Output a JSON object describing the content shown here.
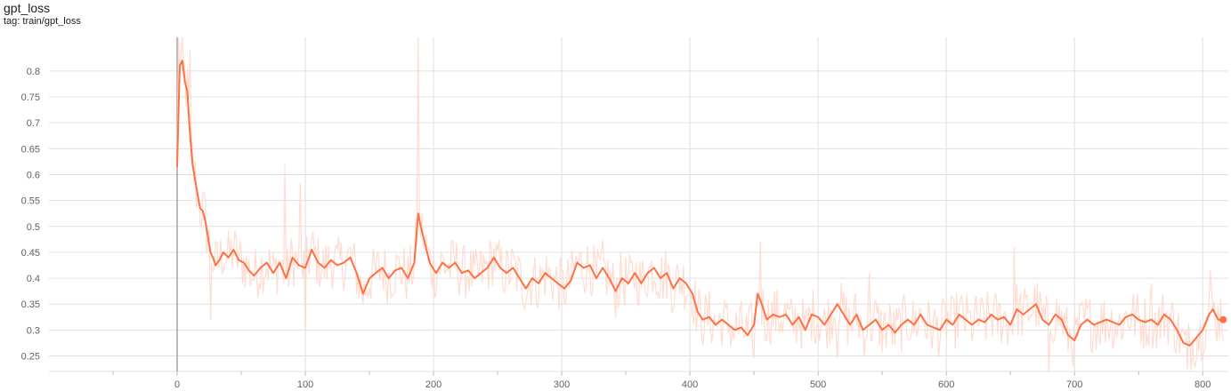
{
  "header": {
    "title": "gpt_loss",
    "tag": "tag: train/gpt_loss"
  },
  "colors": {
    "smoothed": "#ff7043",
    "raw": "#ffd6c9",
    "grid": "#e0e0e0",
    "zero_axis": "#9e9e9e"
  },
  "chart_data": {
    "type": "line",
    "title": "gpt_loss",
    "subtitle": "tag: train/gpt_loss",
    "xlabel": "",
    "ylabel": "",
    "xlim": [
      -100,
      820
    ],
    "ylim": [
      0.22,
      0.865
    ],
    "x_ticks": [
      0,
      100,
      200,
      300,
      400,
      500,
      600,
      700,
      800
    ],
    "y_ticks": [
      0.25,
      0.3,
      0.35,
      0.4,
      0.45,
      0.5,
      0.55,
      0.6,
      0.65,
      0.7,
      0.75,
      0.8
    ],
    "grid": true,
    "legend": "none",
    "series": [
      {
        "role": "smoothed",
        "points": [
          [
            0,
            0.615
          ],
          [
            2,
            0.81
          ],
          [
            4,
            0.82
          ],
          [
            6,
            0.78
          ],
          [
            8,
            0.76
          ],
          [
            10,
            0.68
          ],
          [
            12,
            0.62
          ],
          [
            14,
            0.59
          ],
          [
            16,
            0.56
          ],
          [
            18,
            0.535
          ],
          [
            20,
            0.53
          ],
          [
            22,
            0.51
          ],
          [
            24,
            0.48
          ],
          [
            26,
            0.45
          ],
          [
            28,
            0.44
          ],
          [
            30,
            0.425
          ],
          [
            33,
            0.435
          ],
          [
            36,
            0.45
          ],
          [
            40,
            0.44
          ],
          [
            44,
            0.455
          ],
          [
            48,
            0.435
          ],
          [
            52,
            0.43
          ],
          [
            56,
            0.415
          ],
          [
            60,
            0.405
          ],
          [
            65,
            0.42
          ],
          [
            70,
            0.43
          ],
          [
            75,
            0.41
          ],
          [
            80,
            0.43
          ],
          [
            85,
            0.4
          ],
          [
            90,
            0.44
          ],
          [
            95,
            0.425
          ],
          [
            100,
            0.42
          ],
          [
            105,
            0.455
          ],
          [
            110,
            0.43
          ],
          [
            115,
            0.42
          ],
          [
            120,
            0.435
          ],
          [
            125,
            0.425
          ],
          [
            130,
            0.43
          ],
          [
            135,
            0.44
          ],
          [
            140,
            0.41
          ],
          [
            145,
            0.37
          ],
          [
            150,
            0.4
          ],
          [
            155,
            0.41
          ],
          [
            160,
            0.42
          ],
          [
            165,
            0.4
          ],
          [
            170,
            0.415
          ],
          [
            175,
            0.42
          ],
          [
            180,
            0.4
          ],
          [
            185,
            0.43
          ],
          [
            188,
            0.525
          ],
          [
            190,
            0.5
          ],
          [
            193,
            0.47
          ],
          [
            197,
            0.43
          ],
          [
            202,
            0.41
          ],
          [
            207,
            0.43
          ],
          [
            212,
            0.42
          ],
          [
            217,
            0.43
          ],
          [
            222,
            0.41
          ],
          [
            227,
            0.415
          ],
          [
            232,
            0.4
          ],
          [
            237,
            0.41
          ],
          [
            242,
            0.42
          ],
          [
            247,
            0.44
          ],
          [
            252,
            0.42
          ],
          [
            257,
            0.41
          ],
          [
            262,
            0.42
          ],
          [
            267,
            0.4
          ],
          [
            272,
            0.38
          ],
          [
            277,
            0.4
          ],
          [
            282,
            0.39
          ],
          [
            287,
            0.41
          ],
          [
            292,
            0.4
          ],
          [
            297,
            0.39
          ],
          [
            302,
            0.38
          ],
          [
            307,
            0.395
          ],
          [
            312,
            0.43
          ],
          [
            317,
            0.42
          ],
          [
            322,
            0.425
          ],
          [
            327,
            0.4
          ],
          [
            332,
            0.42
          ],
          [
            337,
            0.4
          ],
          [
            342,
            0.375
          ],
          [
            347,
            0.4
          ],
          [
            352,
            0.39
          ],
          [
            357,
            0.41
          ],
          [
            362,
            0.39
          ],
          [
            367,
            0.41
          ],
          [
            372,
            0.42
          ],
          [
            377,
            0.4
          ],
          [
            382,
            0.41
          ],
          [
            387,
            0.38
          ],
          [
            392,
            0.4
          ],
          [
            397,
            0.39
          ],
          [
            402,
            0.37
          ],
          [
            406,
            0.335
          ],
          [
            410,
            0.32
          ],
          [
            415,
            0.325
          ],
          [
            420,
            0.31
          ],
          [
            425,
            0.32
          ],
          [
            430,
            0.31
          ],
          [
            435,
            0.3
          ],
          [
            440,
            0.305
          ],
          [
            445,
            0.29
          ],
          [
            450,
            0.31
          ],
          [
            453,
            0.37
          ],
          [
            456,
            0.35
          ],
          [
            460,
            0.32
          ],
          [
            465,
            0.33
          ],
          [
            470,
            0.325
          ],
          [
            475,
            0.33
          ],
          [
            480,
            0.31
          ],
          [
            485,
            0.325
          ],
          [
            490,
            0.3
          ],
          [
            495,
            0.33
          ],
          [
            500,
            0.325
          ],
          [
            505,
            0.31
          ],
          [
            510,
            0.33
          ],
          [
            515,
            0.35
          ],
          [
            520,
            0.33
          ],
          [
            525,
            0.31
          ],
          [
            530,
            0.33
          ],
          [
            535,
            0.3
          ],
          [
            540,
            0.31
          ],
          [
            545,
            0.32
          ],
          [
            550,
            0.3
          ],
          [
            555,
            0.31
          ],
          [
            560,
            0.295
          ],
          [
            565,
            0.31
          ],
          [
            570,
            0.32
          ],
          [
            575,
            0.31
          ],
          [
            580,
            0.33
          ],
          [
            585,
            0.31
          ],
          [
            590,
            0.305
          ],
          [
            595,
            0.3
          ],
          [
            600,
            0.32
          ],
          [
            605,
            0.31
          ],
          [
            610,
            0.33
          ],
          [
            615,
            0.32
          ],
          [
            620,
            0.31
          ],
          [
            625,
            0.32
          ],
          [
            630,
            0.315
          ],
          [
            635,
            0.33
          ],
          [
            640,
            0.32
          ],
          [
            645,
            0.325
          ],
          [
            650,
            0.31
          ],
          [
            655,
            0.34
          ],
          [
            660,
            0.33
          ],
          [
            665,
            0.34
          ],
          [
            670,
            0.35
          ],
          [
            675,
            0.32
          ],
          [
            680,
            0.31
          ],
          [
            685,
            0.33
          ],
          [
            690,
            0.32
          ],
          [
            695,
            0.29
          ],
          [
            700,
            0.28
          ],
          [
            705,
            0.31
          ],
          [
            710,
            0.32
          ],
          [
            715,
            0.31
          ],
          [
            720,
            0.315
          ],
          [
            725,
            0.32
          ],
          [
            730,
            0.315
          ],
          [
            735,
            0.31
          ],
          [
            740,
            0.325
          ],
          [
            745,
            0.33
          ],
          [
            750,
            0.32
          ],
          [
            755,
            0.315
          ],
          [
            760,
            0.32
          ],
          [
            765,
            0.31
          ],
          [
            770,
            0.33
          ],
          [
            775,
            0.32
          ],
          [
            780,
            0.3
          ],
          [
            785,
            0.275
          ],
          [
            790,
            0.27
          ],
          [
            795,
            0.285
          ],
          [
            800,
            0.3
          ],
          [
            805,
            0.33
          ],
          [
            808,
            0.34
          ],
          [
            812,
            0.32
          ],
          [
            816,
            0.32
          ]
        ]
      }
    ],
    "raw_spikes": [
      {
        "x": 1,
        "value": 0.865
      },
      {
        "x": 10,
        "value": 0.84
      },
      {
        "x": 16,
        "value": 0.54
      },
      {
        "x": 26,
        "value": 0.32
      },
      {
        "x": 84,
        "value": 0.62
      },
      {
        "x": 96,
        "value": 0.585
      },
      {
        "x": 100,
        "value": 0.29
      },
      {
        "x": 188,
        "value": 0.865
      },
      {
        "x": 450,
        "value": 0.245
      },
      {
        "x": 455,
        "value": 0.47
      },
      {
        "x": 515,
        "value": 0.245
      },
      {
        "x": 540,
        "value": 0.41
      },
      {
        "x": 653,
        "value": 0.46
      },
      {
        "x": 680,
        "value": 0.215
      },
      {
        "x": 760,
        "value": 0.39
      },
      {
        "x": 788,
        "value": 0.225
      },
      {
        "x": 806,
        "value": 0.415
      },
      {
        "x": 814,
        "value": 0.36
      }
    ],
    "last_point": {
      "x": 816,
      "value": 0.32
    }
  }
}
